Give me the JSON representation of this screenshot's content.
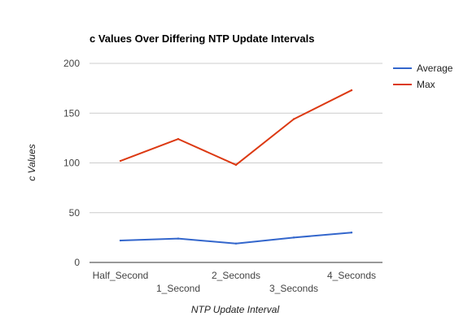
{
  "chart_data": {
    "type": "line",
    "title": "c Values Over Differing NTP Update Intervals",
    "xlabel": "NTP Update Interval",
    "ylabel": "c Values",
    "categories": [
      "Half_Second",
      "1_Second",
      "2_Seconds",
      "3_Seconds",
      "4_Seconds"
    ],
    "series": [
      {
        "name": "Average",
        "values": [
          22,
          24,
          19,
          25,
          30
        ],
        "color": "#3366cc"
      },
      {
        "name": "Max",
        "values": [
          102,
          124,
          98,
          144,
          173
        ],
        "color": "#dc3912"
      }
    ],
    "ylim": [
      0,
      200
    ],
    "yticks": [
      0,
      50,
      100,
      150,
      200
    ],
    "grid": true,
    "legend": "right"
  }
}
